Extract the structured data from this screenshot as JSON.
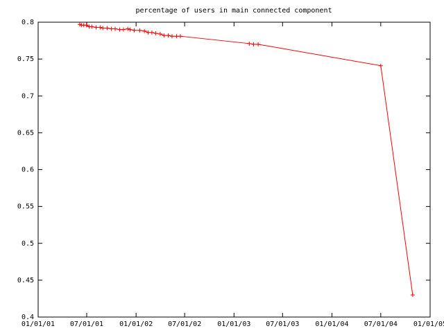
{
  "chart_data": {
    "type": "line",
    "title": "percentage of users in main connected component",
    "x": [
      "06/05/01",
      "06/12/01",
      "06/20/01",
      "06/30/01",
      "07/10/01",
      "07/20/01",
      "08/05/01",
      "08/20/01",
      "08/30/01",
      "09/15/01",
      "10/01/01",
      "10/15/01",
      "11/01/01",
      "11/15/01",
      "12/01/01",
      "12/10/01",
      "12/25/01",
      "01/15/02",
      "02/01/02",
      "02/15/02",
      "03/01/02",
      "03/15/02",
      "04/01/02",
      "04/15/02",
      "05/01/02",
      "05/15/02",
      "06/01/02",
      "06/15/02",
      "02/27/03",
      "03/15/03",
      "04/01/03",
      "07/01/04",
      "10/28/04"
    ],
    "series": [
      {
        "color": "#ff0000",
        "values": [
          0.797,
          0.796,
          0.796,
          0.796,
          0.794,
          0.794,
          0.793,
          0.793,
          0.792,
          0.792,
          0.791,
          0.791,
          0.79,
          0.79,
          0.791,
          0.79,
          0.789,
          0.789,
          0.788,
          0.786,
          0.786,
          0.785,
          0.784,
          0.782,
          0.782,
          0.781,
          0.781,
          0.781,
          0.771,
          0.77,
          0.77,
          0.741,
          0.43
        ]
      }
    ],
    "xlim": [
      "01/01/01",
      "01/01/05"
    ],
    "xticks": [
      "01/01/01",
      "07/01/01",
      "01/01/02",
      "07/01/02",
      "01/01/03",
      "07/01/03",
      "01/01/04",
      "07/01/04",
      "01/01/05"
    ],
    "ylim": [
      0.4,
      0.8
    ],
    "yticks": [
      0.4,
      0.45,
      0.5,
      0.55,
      0.6,
      0.65,
      0.7,
      0.75,
      0.8
    ],
    "grid": false
  }
}
